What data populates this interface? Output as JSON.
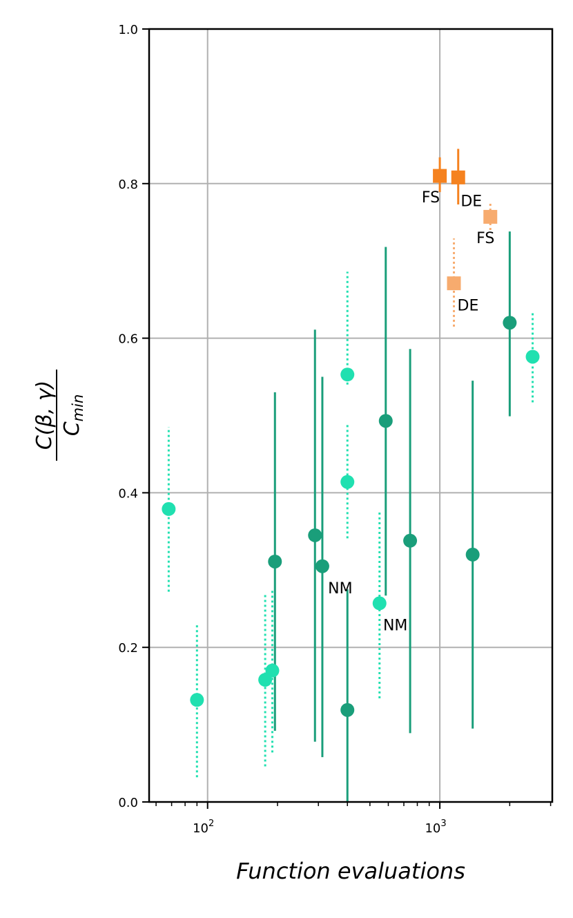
{
  "chart_data": {
    "type": "scatter",
    "title": "",
    "xlabel": "Function evaluations",
    "ylabel": {
      "numerator": "C(β, γ)",
      "denominator_main": "C",
      "denominator_sub": "min"
    },
    "xscale": "log",
    "xlim": [
      56,
      3050
    ],
    "ylim": [
      0.0,
      1.0
    ],
    "grid": true,
    "legend": "none",
    "xticks": [
      {
        "value": 100,
        "base": "10",
        "exp": "2"
      },
      {
        "value": 1000,
        "base": "10",
        "exp": "3"
      }
    ],
    "yticks": [
      {
        "value": 0.0,
        "label": "0.0"
      },
      {
        "value": 0.2,
        "label": "0.2"
      },
      {
        "value": 0.4,
        "label": "0.4"
      },
      {
        "value": 0.6,
        "label": "0.6"
      },
      {
        "value": 0.8,
        "label": "0.8"
      },
      {
        "value": 1.0,
        "label": "1.0"
      }
    ],
    "colors": {
      "dark_green": "#1a9e7a",
      "light_green": "#20e0b0",
      "dark_orange": "#f5821f",
      "light_orange": "#f7ab6e",
      "grid": "#b0b0b0"
    },
    "series": [
      {
        "marker": "circle",
        "color": "#1a9e7a",
        "errorbar": "solid",
        "points": [
          {
            "x": 195,
            "y": 0.311,
            "ylow": 0.092,
            "yhigh": 0.53
          },
          {
            "x": 290,
            "y": 0.345,
            "ylow": 0.078,
            "yhigh": 0.611
          },
          {
            "x": 312,
            "y": 0.305,
            "ylow": 0.058,
            "yhigh": 0.55
          },
          {
            "x": 400,
            "y": 0.119,
            "ylow": 0.0,
            "yhigh": 0.275
          },
          {
            "x": 585,
            "y": 0.493,
            "ylow": 0.267,
            "yhigh": 0.718
          },
          {
            "x": 745,
            "y": 0.338,
            "ylow": 0.089,
            "yhigh": 0.586
          },
          {
            "x": 1385,
            "y": 0.32,
            "ylow": 0.095,
            "yhigh": 0.545
          },
          {
            "x": 2000,
            "y": 0.62,
            "ylow": 0.499,
            "yhigh": 0.738
          }
        ]
      },
      {
        "marker": "circle",
        "color": "#20e0b0",
        "errorbar": "dotted",
        "points": [
          {
            "x": 68,
            "y": 0.379,
            "ylow": 0.272,
            "yhigh": 0.485
          },
          {
            "x": 90,
            "y": 0.132,
            "ylow": 0.032,
            "yhigh": 0.232
          },
          {
            "x": 177,
            "y": 0.158,
            "ylow": 0.046,
            "yhigh": 0.268
          },
          {
            "x": 190,
            "y": 0.17,
            "ylow": 0.064,
            "yhigh": 0.275
          },
          {
            "x": 400,
            "y": 0.553,
            "ylow": 0.54,
            "yhigh": 0.686
          },
          {
            "x": 400,
            "y": 0.414,
            "ylow": 0.341,
            "yhigh": 0.488
          },
          {
            "x": 550,
            "y": 0.257,
            "ylow": 0.134,
            "yhigh": 0.378
          },
          {
            "x": 2510,
            "y": 0.576,
            "ylow": 0.517,
            "yhigh": 0.634
          }
        ]
      },
      {
        "marker": "square",
        "color": "#f5821f",
        "errorbar": "solid",
        "points": [
          {
            "x": 1000,
            "y": 0.81,
            "ylow": 0.789,
            "yhigh": 0.834
          },
          {
            "x": 1200,
            "y": 0.808,
            "ylow": 0.773,
            "yhigh": 0.845
          }
        ]
      },
      {
        "marker": "square",
        "color": "#f7ab6e",
        "errorbar": "dotted",
        "points": [
          {
            "x": 1650,
            "y": 0.757,
            "ylow": 0.74,
            "yhigh": 0.775
          },
          {
            "x": 1150,
            "y": 0.671,
            "ylow": 0.615,
            "yhigh": 0.729
          }
        ]
      }
    ],
    "annotations": [
      {
        "text": "FS",
        "x": 1000,
        "y": 0.783,
        "anchor": "end"
      },
      {
        "text": "DE",
        "x": 1230,
        "y": 0.778,
        "anchor": "start"
      },
      {
        "text": "FS",
        "x": 1720,
        "y": 0.73,
        "anchor": "end"
      },
      {
        "text": "DE",
        "x": 1190,
        "y": 0.643,
        "anchor": "start"
      },
      {
        "text": "NM",
        "x": 330,
        "y": 0.277,
        "anchor": "start"
      },
      {
        "text": "NM",
        "x": 570,
        "y": 0.229,
        "anchor": "start"
      }
    ]
  }
}
